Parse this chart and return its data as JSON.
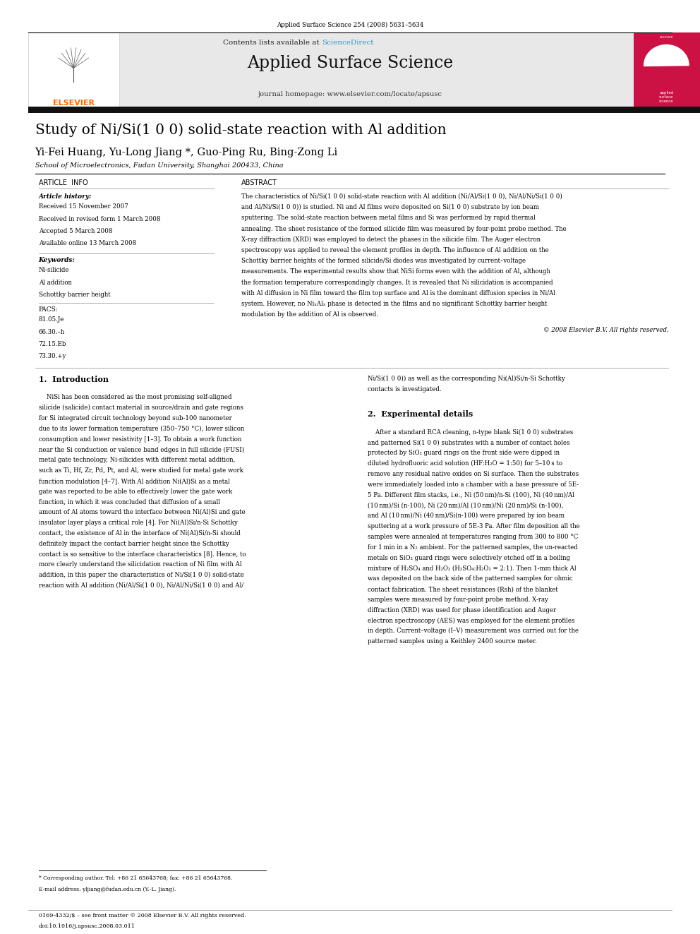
{
  "page_width": 9.92,
  "page_height": 13.23,
  "background_color": "#ffffff",
  "journal_ref": "Applied Surface Science 254 (2008) 5631–5634",
  "header_bg": "#e8e8e8",
  "header_text": "Contents lists available at",
  "header_sciencedirect": "ScienceDirect",
  "journal_name": "Applied Surface Science",
  "journal_homepage": "journal homepage: www.elsevier.com/locate/apsusc",
  "title": "Study of Ni/Si(1 0 0) solid-state reaction with Al addition",
  "authors": "Yi-Fei Huang, Yu-Long Jiang *, Guo-Ping Ru, Bing-Zong Li",
  "affiliation": "School of Microelectronics, Fudan University, Shanghai 200433, China",
  "article_info_header": "ARTICLE  INFO",
  "article_history_label": "Article history:",
  "received": "Received 15 November 2007",
  "revised": "Received in revised form 1 March 2008",
  "accepted": "Accepted 5 March 2008",
  "online": "Available online 13 March 2008",
  "keywords_label": "Keywords:",
  "keywords": [
    "Ni-silicide",
    "Al addition",
    "Schottky barrier height"
  ],
  "pacs_label": "PACS:",
  "pacs": [
    "81.05.Je",
    "66.30.–h",
    "72.15.Eb",
    "73.30.+y"
  ],
  "abstract_header": "ABSTRACT",
  "abstract_lines": [
    "The characteristics of Ni/Si(1 0 0) solid-state reaction with Al addition (Ni/Al/Si(1 0 0), Ni/Al/Ni/Si(1 0 0)",
    "and Al/Ni/Si(1 0 0)) is studied. Ni and Al films were deposited on Si(1 0 0) substrate by ion beam",
    "sputtering. The solid-state reaction between metal films and Si was performed by rapid thermal",
    "annealing. The sheet resistance of the formed silicide film was measured by four-point probe method. The",
    "X-ray diffraction (XRD) was employed to detect the phases in the silicide film. The Auger electron",
    "spectroscopy was applied to reveal the element profiles in depth. The influence of Al addition on the",
    "Schottky barrier heights of the formed silicide/Si diodes was investigated by current–voltage",
    "measurements. The experimental results show that NiSi forms even with the addition of Al, although",
    "the formation temperature correspondingly changes. It is revealed that Ni silicidation is accompanied",
    "with Al diffusion in Ni film toward the film top surface and Al is the dominant diffusion species in Ni/Al",
    "system. However, no NiₓAlₓ phase is detected in the films and no significant Schottky barrier height",
    "modulation by the addition of Al is observed."
  ],
  "copyright": "© 2008 Elsevier B.V. All rights reserved.",
  "section1_title": "1.  Introduction",
  "section1_lines": [
    "    NiSi has been considered as the most promising self-aligned",
    "silicide (salicide) contact material in source/drain and gate regions",
    "for Si integrated circuit technology beyond sub-100 nanometer",
    "due to its lower formation temperature (350–750 °C), lower silicon",
    "consumption and lower resistivity [1–3]. To obtain a work function",
    "near the Si conduction or valence band edges in full silicide (FUSI)",
    "metal gate technology, Ni-silicides with different metal addition,",
    "such as Ti, Hf, Zr, Pd, Pt, and Al, were studied for metal gate work",
    "function modulation [4–7]. With Al addition Ni(Al)Si as a metal",
    "gate was reported to be able to effectively lower the gate work",
    "function, in which it was concluded that diffusion of a small",
    "amount of Al atoms toward the interface between Ni(Al)Si and gate",
    "insulator layer plays a critical role [4]. For Ni(Al)Si/n-Si Schottky",
    "contact, the existence of Al in the interface of Ni(Al)Si/n-Si should",
    "definitely impact the contact barrier height since the Schottky",
    "contact is so sensitive to the interface characteristics [8]. Hence, to",
    "more clearly understand the silicidation reaction of Ni film with Al",
    "addition, in this paper the characteristics of Ni/Si(1 0 0) solid-state",
    "reaction with Al addition (Ni/Al/Si(1 0 0), Ni/Al/Ni/Si(1 0 0) and Al/"
  ],
  "section1_col2_lines": [
    "Ni/Si(1 0 0)) as well as the corresponding Ni(Al)Si/n-Si Schottky",
    "contacts is investigated."
  ],
  "section2_title": "2.  Experimental details",
  "section2_lines": [
    "    After a standard RCA cleaning, n-type blank Si(1 0 0) substrates",
    "and patterned Si(1 0 0) substrates with a number of contact holes",
    "protected by SiO₂ guard rings on the front side were dipped in",
    "diluted hydrofluoric acid solution (HF:H₂O = 1:50) for 5–10 s to",
    "remove any residual native oxides on Si surface. Then the substrates",
    "were immediately loaded into a chamber with a base pressure of 5E-",
    "5 Pa. Different film stacks, i.e., Ni (50 nm)/n-Si (100), Ni (40 nm)/Al",
    "(10 nm)/Si (n-100), Ni (20 nm)/Al (10 nm)/Ni (20 nm)/Si (n-100),",
    "and Al (10 nm)/Ni (40 nm)/Si(n-100) were prepared by ion beam",
    "sputtering at a work pressure of 5E-3 Pa. After film deposition all the",
    "samples were annealed at temperatures ranging from 300 to 800 °C",
    "for 1 min in a N₂ ambient. For the patterned samples, the un-reacted",
    "metals on SiO₂ guard rings were selectively etched off in a boiling",
    "mixture of H₂SO₄ and H₂O₂ (H₂SO₄:H₂O₂ = 2:1). Then 1-mm thick Al",
    "was deposited on the back side of the patterned samples for ohmic",
    "contact fabrication. The sheet resistances (Rsh) of the blanket",
    "samples were measured by four-point probe method. X-ray",
    "diffraction (XRD) was used for phase identification and Auger",
    "electron spectroscopy (AES) was employed for the element profiles",
    "in depth. Current–voltage (I–V) measurement was carried out for the",
    "patterned samples using a Keithley 2400 source meter."
  ],
  "footnote_star": "* Corresponding author. Tel: +86 21 65643768; fax: +86 21 65643768.",
  "footnote_email": "E-mail address: yljiang@fudan.edu.cn (Y.-L. Jiang).",
  "footer_issn": "0169-4332/$ – see front matter © 2008 Elsevier B.V. All rights reserved.",
  "footer_doi": "doi:10.1016/j.apsusc.2008.03.011",
  "elsevier_color": "#FF6600",
  "sciencedirect_color": "#3399cc",
  "top_bar_color": "#000000",
  "thick_bar_color": "#111111"
}
